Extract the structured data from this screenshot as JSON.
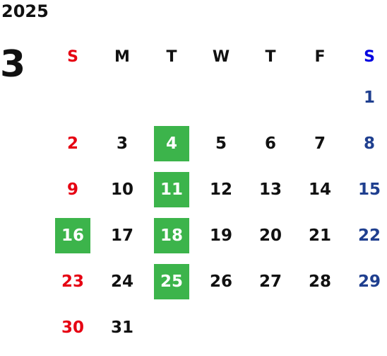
{
  "calendar": {
    "year": "2025",
    "month": "3",
    "weekdays": [
      "S",
      "M",
      "T",
      "W",
      "T",
      "F",
      "S"
    ],
    "weeks": [
      [
        "",
        "",
        "",
        "",
        "",
        "",
        "1"
      ],
      [
        "2",
        "3",
        "4",
        "5",
        "6",
        "7",
        "8"
      ],
      [
        "9",
        "10",
        "11",
        "12",
        "13",
        "14",
        "15"
      ],
      [
        "16",
        "17",
        "18",
        "19",
        "20",
        "21",
        "22"
      ],
      [
        "23",
        "24",
        "25",
        "26",
        "27",
        "28",
        "29"
      ],
      [
        "30",
        "31",
        "",
        "",
        "",
        "",
        ""
      ]
    ],
    "highlighted_days": [
      "4",
      "11",
      "16",
      "18",
      "25"
    ],
    "colors": {
      "sunday": "#e60012",
      "saturday": "#1f3f8f",
      "saturday_header": "#0000e0",
      "highlight": "#3cb44b",
      "text": "#111111"
    }
  }
}
